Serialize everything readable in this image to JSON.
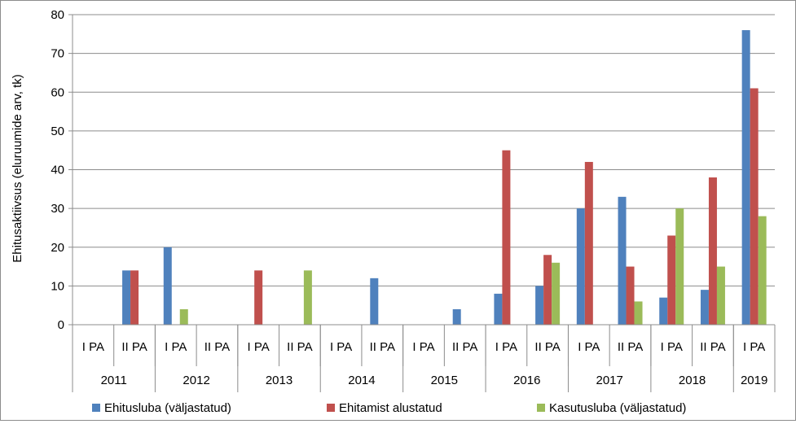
{
  "chart_data": {
    "type": "bar",
    "ylabel": "Ehitusaktiivsus (eluruumide arv, tk)",
    "ylim": [
      0,
      80
    ],
    "yticks": [
      0,
      10,
      20,
      30,
      40,
      50,
      60,
      70,
      80
    ],
    "grid": true,
    "legend_position": "bottom",
    "categories": [
      {
        "period": "I PA",
        "year": "2011"
      },
      {
        "period": "II PA",
        "year": "2011"
      },
      {
        "period": "I PA",
        "year": "2012"
      },
      {
        "period": "II PA",
        "year": "2012"
      },
      {
        "period": "I PA",
        "year": "2013"
      },
      {
        "period": "II PA",
        "year": "2013"
      },
      {
        "period": "I PA",
        "year": "2014"
      },
      {
        "period": "II PA",
        "year": "2014"
      },
      {
        "period": "I PA",
        "year": "2015"
      },
      {
        "period": "II PA",
        "year": "2015"
      },
      {
        "period": "I PA",
        "year": "2016"
      },
      {
        "period": "II PA",
        "year": "2016"
      },
      {
        "period": "I PA",
        "year": "2017"
      },
      {
        "period": "II PA",
        "year": "2017"
      },
      {
        "period": "I PA",
        "year": "2018"
      },
      {
        "period": "II PA",
        "year": "2018"
      },
      {
        "period": "I PA",
        "year": "2019"
      }
    ],
    "years": [
      "2011",
      "2012",
      "2013",
      "2014",
      "2015",
      "2016",
      "2017",
      "2018",
      "2019"
    ],
    "series": [
      {
        "name": "Ehitusluba (väljastatud)",
        "color": "#4f81bd",
        "values": [
          0,
          14,
          20,
          0,
          0,
          0,
          0,
          12,
          0,
          4,
          8,
          10,
          30,
          33,
          7,
          9,
          76
        ]
      },
      {
        "name": "Ehitamist alustatud",
        "color": "#c0504d",
        "values": [
          0,
          14,
          0,
          0,
          14,
          0,
          0,
          0,
          0,
          0,
          45,
          18,
          42,
          15,
          23,
          38,
          61
        ]
      },
      {
        "name": "Kasutusluba (väljastatud)",
        "color": "#9bbb59",
        "values": [
          0,
          0,
          4,
          0,
          0,
          14,
          0,
          0,
          0,
          0,
          0,
          16,
          0,
          6,
          30,
          15,
          28
        ]
      }
    ]
  }
}
